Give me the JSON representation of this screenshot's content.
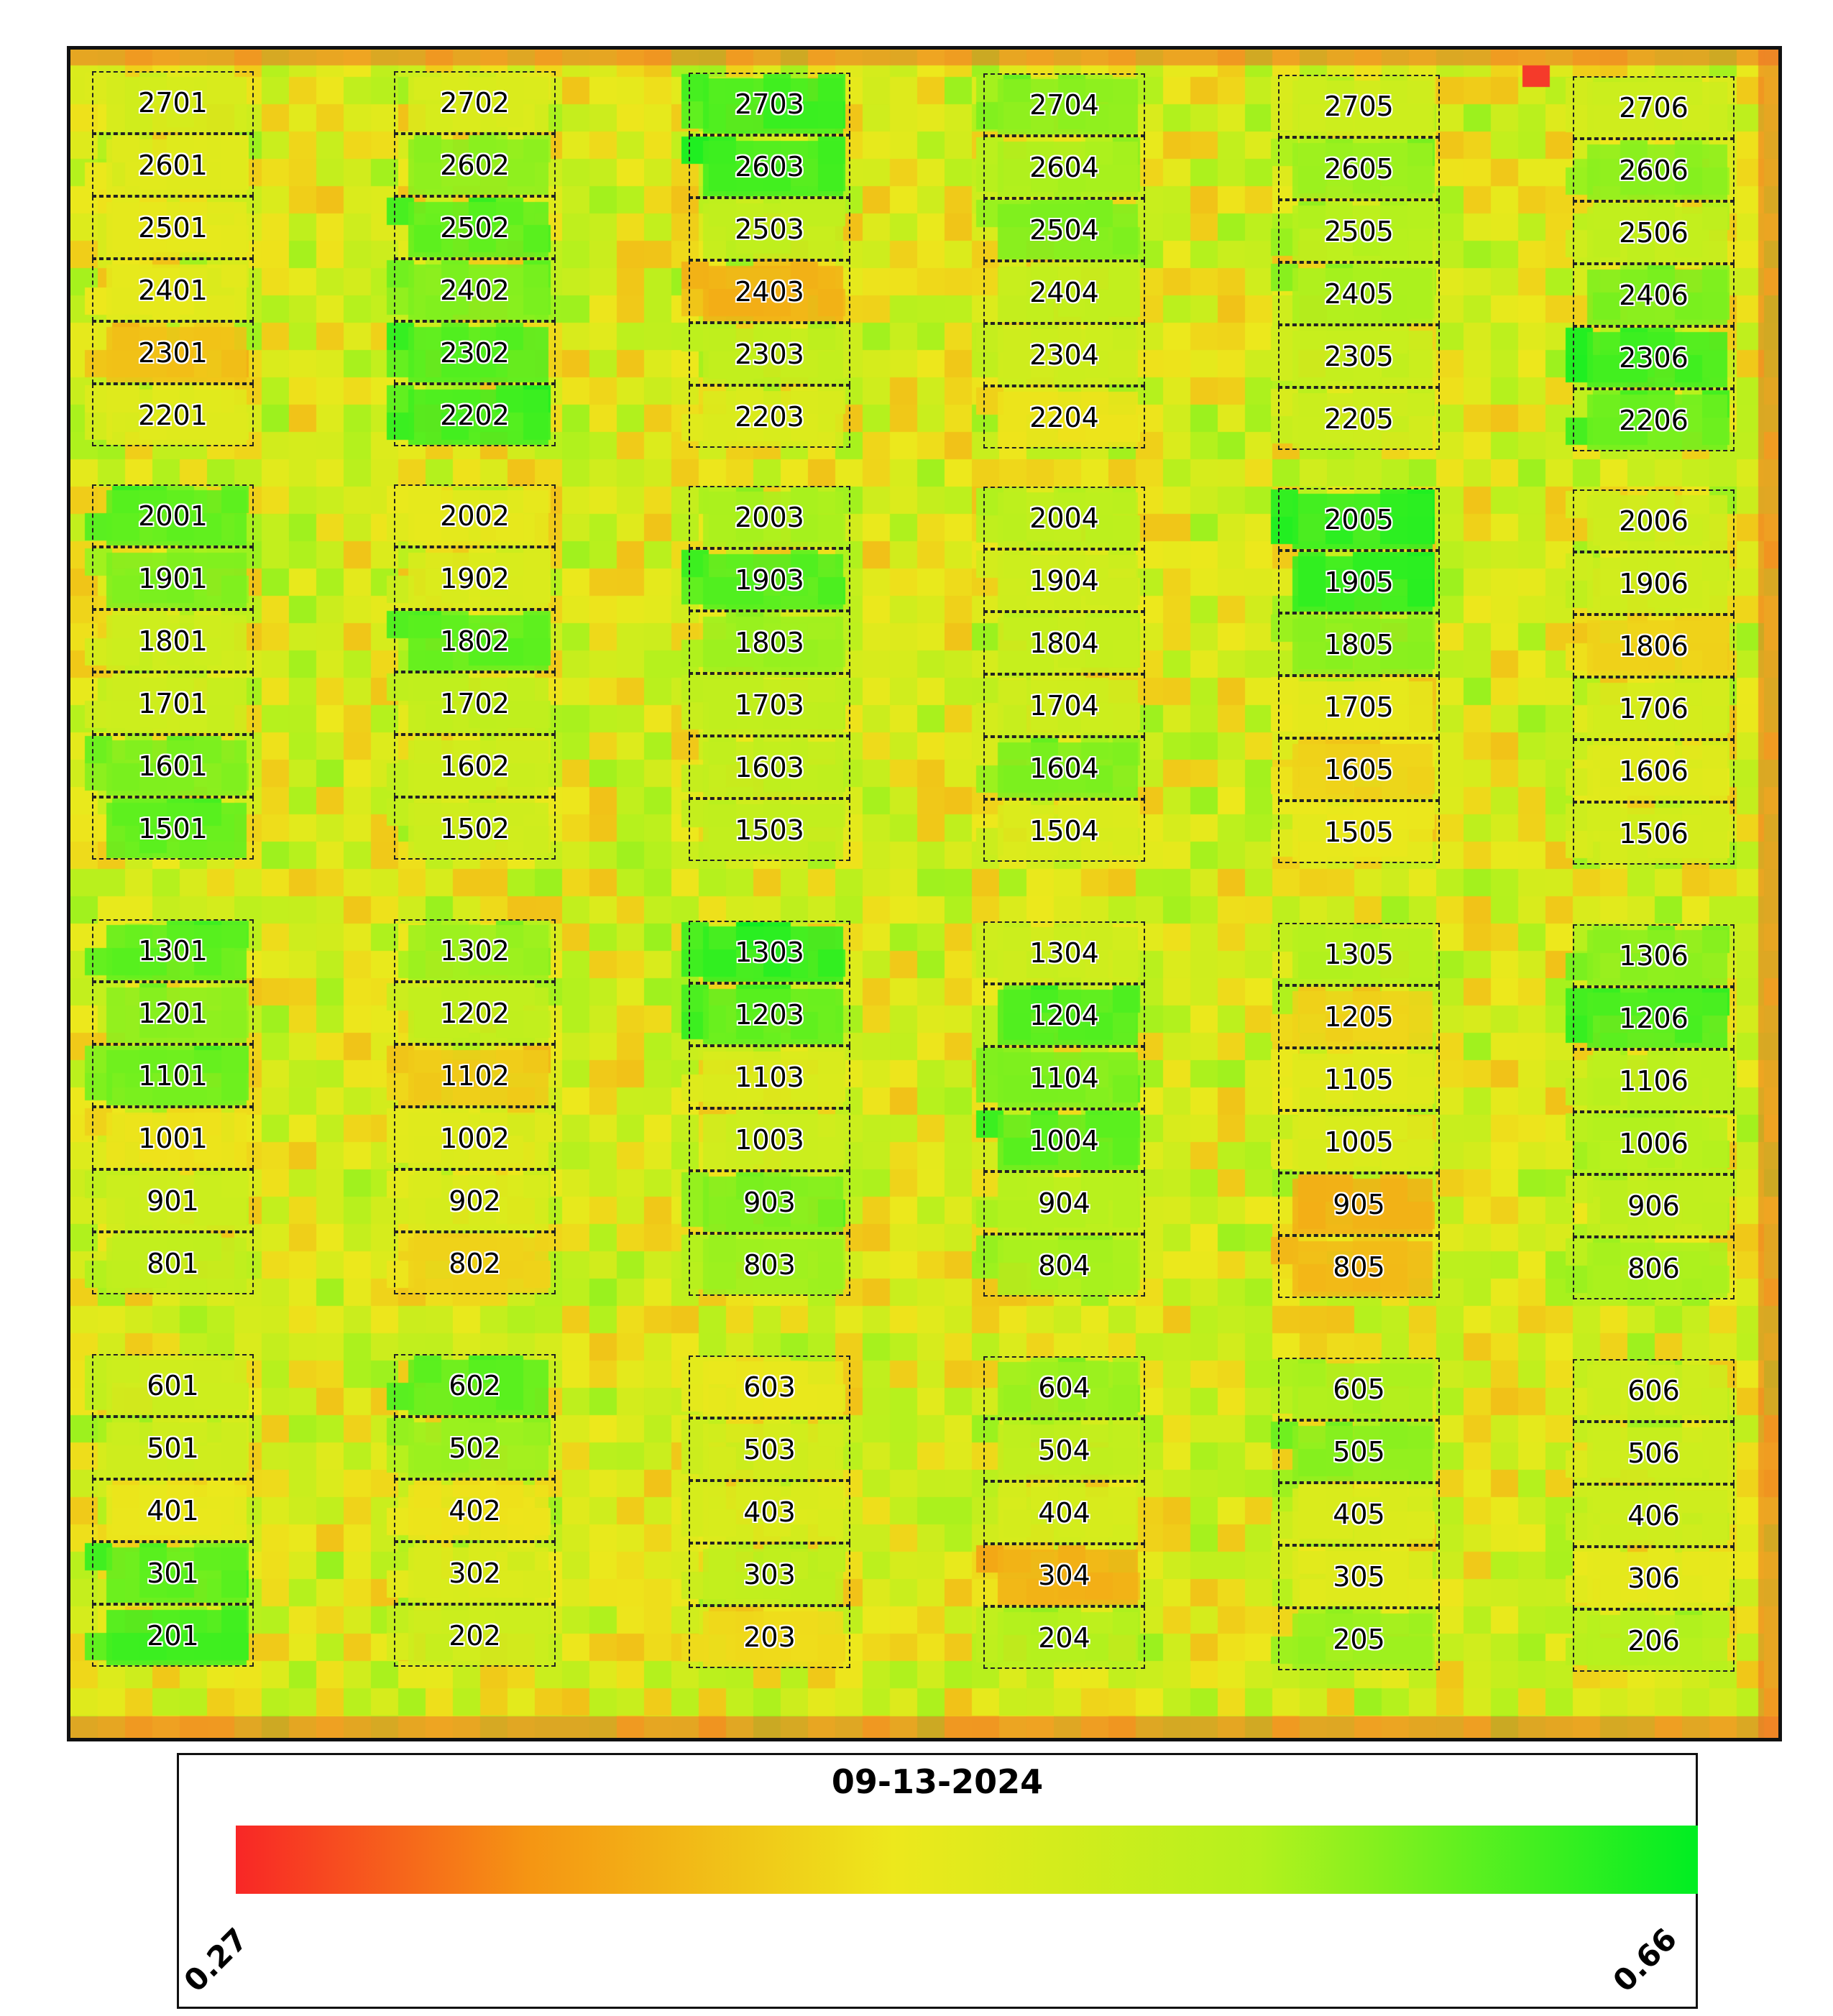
{
  "legend": {
    "date": "09-13-2024",
    "min_label": "0.27",
    "max_label": "0.66",
    "min_value": 0.27,
    "max_value": 0.66,
    "colors": [
      "#f82626",
      "#f59513",
      "#ede81c",
      "#b4f11d",
      "#00ee22"
    ]
  },
  "map": {
    "background_colors": {
      "low": "#f05a20",
      "mid_low": "#f2a32a",
      "mid": "#e9e82a",
      "mid_high": "#b6ee30",
      "high": "#19e61e"
    },
    "columns": [
      {
        "plots": [
          {
            "id": "2701",
            "level": 0.49
          },
          {
            "id": "2601",
            "level": 0.47
          },
          {
            "id": "2501",
            "level": 0.46
          },
          {
            "id": "2401",
            "level": 0.46
          },
          {
            "id": "2301",
            "level": 0.4
          },
          {
            "id": "2201",
            "level": 0.47
          },
          {
            "id": "2001",
            "level": 0.6
          },
          {
            "id": "1901",
            "level": 0.58
          },
          {
            "id": "1801",
            "level": 0.5
          },
          {
            "id": "1701",
            "level": 0.5
          },
          {
            "id": "1601",
            "level": 0.58
          },
          {
            "id": "1501",
            "level": 0.6
          },
          {
            "id": "1301",
            "level": 0.6
          },
          {
            "id": "1201",
            "level": 0.57
          },
          {
            "id": "1101",
            "level": 0.59
          },
          {
            "id": "1001",
            "level": 0.44
          },
          {
            "id": "901",
            "level": 0.5
          },
          {
            "id": "801",
            "level": 0.52
          },
          {
            "id": "601",
            "level": 0.5
          },
          {
            "id": "501",
            "level": 0.5
          },
          {
            "id": "401",
            "level": 0.45
          },
          {
            "id": "301",
            "level": 0.6
          },
          {
            "id": "201",
            "level": 0.62
          }
        ]
      },
      {
        "plots": [
          {
            "id": "2702",
            "level": 0.48
          },
          {
            "id": "2602",
            "level": 0.57
          },
          {
            "id": "2502",
            "level": 0.6
          },
          {
            "id": "2402",
            "level": 0.58
          },
          {
            "id": "2302",
            "level": 0.61
          },
          {
            "id": "2202",
            "level": 0.62
          },
          {
            "id": "2002",
            "level": 0.46
          },
          {
            "id": "1902",
            "level": 0.48
          },
          {
            "id": "1802",
            "level": 0.6
          },
          {
            "id": "1702",
            "level": 0.52
          },
          {
            "id": "1602",
            "level": 0.5
          },
          {
            "id": "1502",
            "level": 0.5
          },
          {
            "id": "1302",
            "level": 0.56
          },
          {
            "id": "1202",
            "level": 0.52
          },
          {
            "id": "1102",
            "level": 0.41
          },
          {
            "id": "1002",
            "level": 0.47
          },
          {
            "id": "902",
            "level": 0.48
          },
          {
            "id": "802",
            "level": 0.42
          },
          {
            "id": "602",
            "level": 0.6
          },
          {
            "id": "502",
            "level": 0.56
          },
          {
            "id": "402",
            "level": 0.44
          },
          {
            "id": "302",
            "level": 0.48
          },
          {
            "id": "202",
            "level": 0.5
          }
        ]
      },
      {
        "plots": [
          {
            "id": "2703",
            "level": 0.62
          },
          {
            "id": "2603",
            "level": 0.62
          },
          {
            "id": "2503",
            "level": 0.52
          },
          {
            "id": "2403",
            "level": 0.38
          },
          {
            "id": "2303",
            "level": 0.52
          },
          {
            "id": "2203",
            "level": 0.48
          },
          {
            "id": "2003",
            "level": 0.55
          },
          {
            "id": "1903",
            "level": 0.61
          },
          {
            "id": "1803",
            "level": 0.56
          },
          {
            "id": "1703",
            "level": 0.52
          },
          {
            "id": "1603",
            "level": 0.52
          },
          {
            "id": "1503",
            "level": 0.52
          },
          {
            "id": "1303",
            "level": 0.63
          },
          {
            "id": "1203",
            "level": 0.6
          },
          {
            "id": "1103",
            "level": 0.48
          },
          {
            "id": "1003",
            "level": 0.5
          },
          {
            "id": "903",
            "level": 0.58
          },
          {
            "id": "803",
            "level": 0.56
          },
          {
            "id": "603",
            "level": 0.45
          },
          {
            "id": "503",
            "level": 0.49
          },
          {
            "id": "403",
            "level": 0.48
          },
          {
            "id": "303",
            "level": 0.52
          },
          {
            "id": "203",
            "level": 0.43
          }
        ]
      },
      {
        "plots": [
          {
            "id": "2704",
            "level": 0.57
          },
          {
            "id": "2604",
            "level": 0.55
          },
          {
            "id": "2504",
            "level": 0.58
          },
          {
            "id": "2404",
            "level": 0.52
          },
          {
            "id": "2304",
            "level": 0.5
          },
          {
            "id": "2204",
            "level": 0.44
          },
          {
            "id": "2004",
            "level": 0.53
          },
          {
            "id": "1904",
            "level": 0.5
          },
          {
            "id": "1804",
            "level": 0.51
          },
          {
            "id": "1704",
            "level": 0.5
          },
          {
            "id": "1604",
            "level": 0.58
          },
          {
            "id": "1504",
            "level": 0.48
          },
          {
            "id": "1304",
            "level": 0.5
          },
          {
            "id": "1204",
            "level": 0.61
          },
          {
            "id": "1104",
            "level": 0.58
          },
          {
            "id": "1004",
            "level": 0.6
          },
          {
            "id": "904",
            "level": 0.54
          },
          {
            "id": "804",
            "level": 0.55
          },
          {
            "id": "604",
            "level": 0.56
          },
          {
            "id": "504",
            "level": 0.52
          },
          {
            "id": "404",
            "level": 0.49
          },
          {
            "id": "304",
            "level": 0.38
          },
          {
            "id": "204",
            "level": 0.54
          }
        ]
      },
      {
        "plots": [
          {
            "id": "2705",
            "level": 0.5
          },
          {
            "id": "2605",
            "level": 0.56
          },
          {
            "id": "2505",
            "level": 0.54
          },
          {
            "id": "2405",
            "level": 0.55
          },
          {
            "id": "2305",
            "level": 0.51
          },
          {
            "id": "2205",
            "level": 0.5
          },
          {
            "id": "2005",
            "level": 0.63
          },
          {
            "id": "1905",
            "level": 0.63
          },
          {
            "id": "1805",
            "level": 0.57
          },
          {
            "id": "1705",
            "level": 0.46
          },
          {
            "id": "1605",
            "level": 0.42
          },
          {
            "id": "1505",
            "level": 0.45
          },
          {
            "id": "1305",
            "level": 0.54
          },
          {
            "id": "1205",
            "level": 0.42
          },
          {
            "id": "1105",
            "level": 0.47
          },
          {
            "id": "1005",
            "level": 0.48
          },
          {
            "id": "905",
            "level": 0.38
          },
          {
            "id": "805",
            "level": 0.39
          },
          {
            "id": "605",
            "level": 0.55
          },
          {
            "id": "505",
            "level": 0.57
          },
          {
            "id": "405",
            "level": 0.48
          },
          {
            "id": "305",
            "level": 0.47
          },
          {
            "id": "205",
            "level": 0.56
          }
        ]
      },
      {
        "plots": [
          {
            "id": "2706",
            "level": 0.5
          },
          {
            "id": "2606",
            "level": 0.57
          },
          {
            "id": "2506",
            "level": 0.52
          },
          {
            "id": "2406",
            "level": 0.58
          },
          {
            "id": "2306",
            "level": 0.62
          },
          {
            "id": "2206",
            "level": 0.59
          },
          {
            "id": "2006",
            "level": 0.5
          },
          {
            "id": "1906",
            "level": 0.5
          },
          {
            "id": "1806",
            "level": 0.42
          },
          {
            "id": "1706",
            "level": 0.49
          },
          {
            "id": "1606",
            "level": 0.47
          },
          {
            "id": "1506",
            "level": 0.49
          },
          {
            "id": "1306",
            "level": 0.57
          },
          {
            "id": "1206",
            "level": 0.61
          },
          {
            "id": "1106",
            "level": 0.53
          },
          {
            "id": "1006",
            "level": 0.54
          },
          {
            "id": "906",
            "level": 0.52
          },
          {
            "id": "806",
            "level": 0.55
          },
          {
            "id": "606",
            "level": 0.5
          },
          {
            "id": "506",
            "level": 0.5
          },
          {
            "id": "406",
            "level": 0.5
          },
          {
            "id": "306",
            "level": 0.46
          },
          {
            "id": "206",
            "level": 0.54
          }
        ]
      }
    ]
  }
}
